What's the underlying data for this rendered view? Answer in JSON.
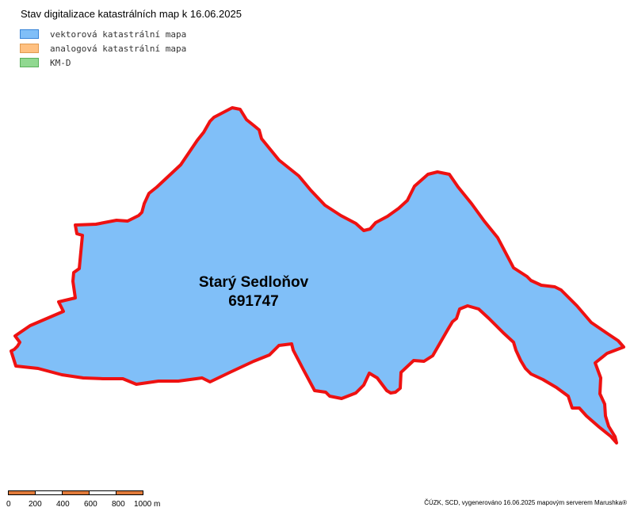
{
  "map": {
    "title": "Stav digitalizace katastrálních map k 16.06.2025",
    "legend": [
      {
        "label": "vektorová katastrální mapa",
        "fill": "#80bff8",
        "border": "#3a86d8"
      },
      {
        "label": "analogová katastrální mapa",
        "fill": "#ffc080",
        "border": "#e09a50"
      },
      {
        "label": "KM-D",
        "fill": "#90d890",
        "border": "#5ab05a"
      }
    ],
    "parcel": {
      "name": "Starý Sedloňov",
      "code": "691747",
      "fill": "#80bff8",
      "outline": "#ee1111"
    },
    "scale": {
      "ticks": [
        "0",
        "200",
        "400",
        "600",
        "800",
        "1000 m"
      ],
      "fill_color": "#e07a3a"
    },
    "attribution": "ČÚZK, SCD, vygenerováno 16.06.2025 mapovým serverem Marushka®"
  }
}
